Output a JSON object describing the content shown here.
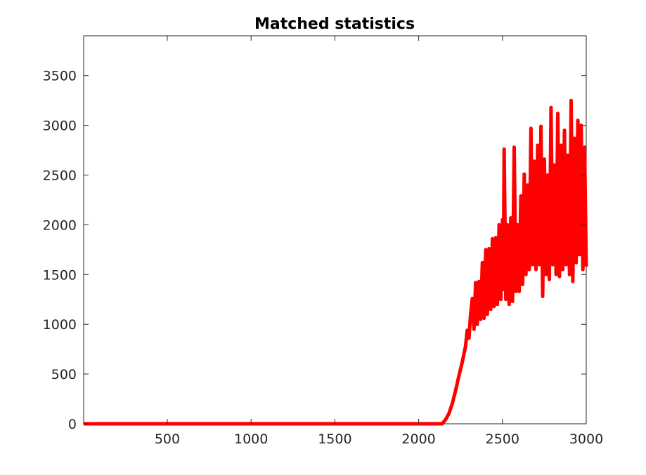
{
  "chart_data": {
    "type": "line",
    "title": "Matched statistics",
    "xlabel": "",
    "ylabel": "",
    "xlim": [
      1,
      3000
    ],
    "ylim": [
      0,
      3900
    ],
    "x_ticks": [
      500,
      1000,
      1500,
      2000,
      2500,
      3000
    ],
    "x_tick_labels": [
      "500",
      "1000",
      "1500",
      "2000",
      "2500",
      "3000"
    ],
    "y_ticks": [
      0,
      500,
      1000,
      1500,
      2000,
      2500,
      3000,
      3500
    ],
    "y_tick_labels": [
      "0",
      "500",
      "1000",
      "1500",
      "2000",
      "2500",
      "3000",
      "3500"
    ],
    "grid": false,
    "legend": "none",
    "series": [
      {
        "color": "#ff0000",
        "points": [
          [
            1,
            0
          ],
          [
            500,
            0
          ],
          [
            1000,
            0
          ],
          [
            1500,
            0
          ],
          [
            2000,
            0
          ],
          [
            2140,
            0
          ],
          [
            2160,
            40
          ],
          [
            2180,
            100
          ],
          [
            2200,
            200
          ],
          [
            2220,
            330
          ],
          [
            2240,
            480
          ],
          [
            2260,
            620
          ],
          [
            2280,
            780
          ],
          [
            2290,
            940
          ],
          [
            2300,
            860
          ],
          [
            2310,
            1100
          ],
          [
            2320,
            1260
          ],
          [
            2330,
            950
          ],
          [
            2340,
            1420
          ],
          [
            2350,
            1000
          ],
          [
            2360,
            1430
          ],
          [
            2370,
            1050
          ],
          [
            2380,
            1620
          ],
          [
            2390,
            1060
          ],
          [
            2400,
            1750
          ],
          [
            2410,
            1100
          ],
          [
            2420,
            1760
          ],
          [
            2430,
            1150
          ],
          [
            2440,
            1860
          ],
          [
            2450,
            1180
          ],
          [
            2460,
            1870
          ],
          [
            2470,
            1200
          ],
          [
            2480,
            2000
          ],
          [
            2490,
            1250
          ],
          [
            2500,
            2050
          ],
          [
            2505,
            1350
          ],
          [
            2510,
            2760
          ],
          [
            2520,
            1250
          ],
          [
            2530,
            2000
          ],
          [
            2540,
            1200
          ],
          [
            2550,
            2070
          ],
          [
            2560,
            1230
          ],
          [
            2570,
            2780
          ],
          [
            2580,
            1330
          ],
          [
            2590,
            2000
          ],
          [
            2600,
            1330
          ],
          [
            2610,
            2290
          ],
          [
            2620,
            1400
          ],
          [
            2630,
            2510
          ],
          [
            2640,
            1500
          ],
          [
            2650,
            2400
          ],
          [
            2660,
            1550
          ],
          [
            2670,
            2970
          ],
          [
            2680,
            1600
          ],
          [
            2690,
            2640
          ],
          [
            2700,
            1550
          ],
          [
            2710,
            2800
          ],
          [
            2720,
            1600
          ],
          [
            2730,
            2990
          ],
          [
            2740,
            1280
          ],
          [
            2750,
            2660
          ],
          [
            2760,
            1500
          ],
          [
            2770,
            2500
          ],
          [
            2780,
            1450
          ],
          [
            2790,
            3180
          ],
          [
            2800,
            1600
          ],
          [
            2810,
            2600
          ],
          [
            2820,
            1500
          ],
          [
            2830,
            3120
          ],
          [
            2840,
            1480
          ],
          [
            2850,
            2800
          ],
          [
            2860,
            1550
          ],
          [
            2870,
            2950
          ],
          [
            2880,
            1600
          ],
          [
            2890,
            2700
          ],
          [
            2900,
            1500
          ],
          [
            2910,
            3250
          ],
          [
            2920,
            1430
          ],
          [
            2930,
            2870
          ],
          [
            2940,
            1620
          ],
          [
            2950,
            3050
          ],
          [
            2960,
            1700
          ],
          [
            2970,
            3000
          ],
          [
            2980,
            1550
          ],
          [
            2990,
            2780
          ],
          [
            3000,
            1580
          ]
        ]
      }
    ]
  }
}
